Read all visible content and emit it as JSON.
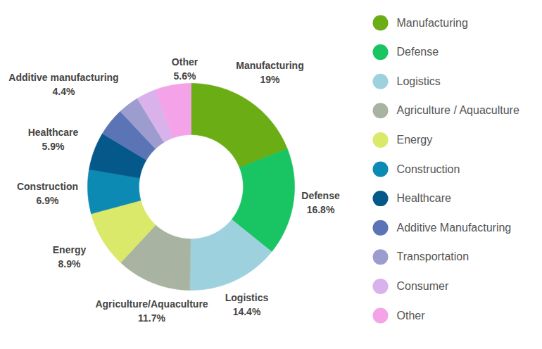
{
  "chart_data": {
    "type": "pie",
    "categories": [
      "Manufacturing",
      "Defense",
      "Logistics",
      "Agriculture / Aquaculture",
      "Energy",
      "Construction",
      "Healthcare",
      "Additive Manufacturing",
      "Transportation",
      "Consumer",
      "Other"
    ],
    "labels": [
      "Manufacturing",
      "Defense",
      "Logistics",
      "Agriculture/Aquaculture",
      "Energy",
      "Construction",
      "Healthcare",
      "Additive manufacturing",
      null,
      null,
      "Other"
    ],
    "values": [
      19,
      16.8,
      14.4,
      11.7,
      8.9,
      6.9,
      5.9,
      4.4,
      3.3,
      3.1,
      5.6
    ],
    "value_labels": [
      "19%",
      "16.8%",
      "14.4%",
      "11.7%",
      "8.9%",
      "6.9%",
      "5.9%",
      "4.4%",
      null,
      null,
      "5.6%"
    ],
    "colors": [
      "#6aad14",
      "#19c463",
      "#9ed1de",
      "#a9b3a1",
      "#dae96a",
      "#0d8ab3",
      "#05588a",
      "#5b74b5",
      "#9c9ccf",
      "#d9b2ec",
      "#f5a3e8"
    ],
    "data_labels": true,
    "legend": "right"
  }
}
